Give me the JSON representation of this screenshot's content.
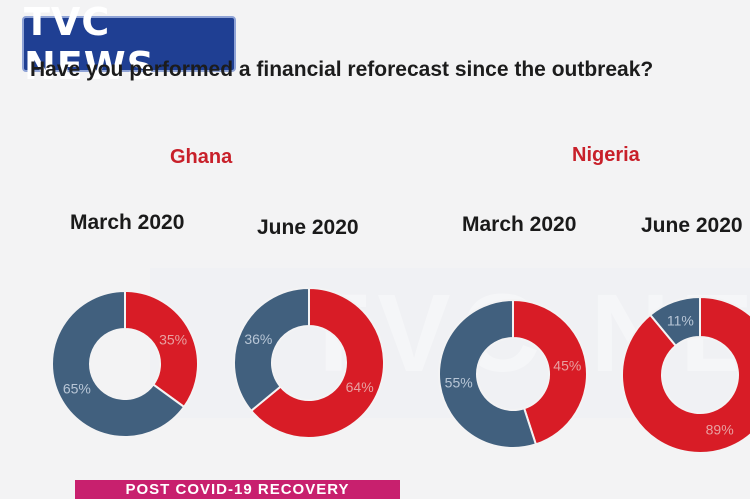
{
  "header": {
    "logo_text": "TVC NEWS",
    "question": "Have you performed a financial reforecast since the outbreak?"
  },
  "countries": {
    "ghana": "Ghana",
    "nigeria": "Nigeria"
  },
  "colors": {
    "yes": "#d81c26",
    "no": "#41607e",
    "pct_text_on_red": "#e8a0a0",
    "pct_text_on_blue": "#b8c6d6"
  },
  "watermark": "TVC NEWS",
  "banner": "POST COVID-19 RECOVERY",
  "chart_data": [
    {
      "type": "pie",
      "title": "March 2020",
      "group": "Ghana",
      "slices": [
        {
          "value": 35,
          "label": "35%",
          "color": "#d81c26"
        },
        {
          "value": 65,
          "label": "65%",
          "color": "#41607e"
        }
      ]
    },
    {
      "type": "pie",
      "title": "June 2020",
      "group": "Ghana",
      "slices": [
        {
          "value": 64,
          "label": "64%",
          "color": "#d81c26"
        },
        {
          "value": 36,
          "label": "36%",
          "color": "#41607e"
        }
      ]
    },
    {
      "type": "pie",
      "title": "March 2020",
      "group": "Nigeria",
      "slices": [
        {
          "value": 45,
          "label": "45%",
          "color": "#d81c26"
        },
        {
          "value": 55,
          "label": "55%",
          "color": "#41607e"
        }
      ]
    },
    {
      "type": "pie",
      "title": "June 2020",
      "group": "Nigeria",
      "slices": [
        {
          "value": 89,
          "label": "89%",
          "color": "#d81c26"
        },
        {
          "value": 11,
          "label": "11%",
          "color": "#41607e"
        }
      ]
    }
  ]
}
